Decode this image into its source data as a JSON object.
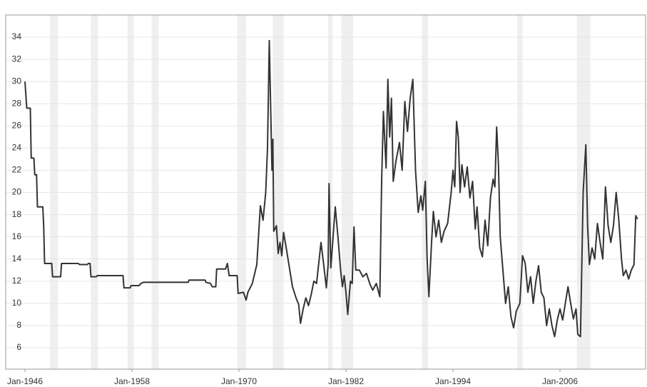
{
  "chart_data": {
    "type": "line",
    "x": [
      1946.0,
      1946.2,
      1946.6,
      1946.7,
      1947.0,
      1947.1,
      1947.3,
      1947.4,
      1948.0,
      1948.1,
      1948.2,
      1949.0,
      1949.1,
      1950.0,
      1950.1,
      1952.0,
      1952.1,
      1953.0,
      1953.1,
      1953.3,
      1953.4,
      1954.0,
      1954.1,
      1957.0,
      1957.1,
      1957.8,
      1957.9,
      1958.8,
      1959.0,
      1959.3,
      1964.3,
      1964.4,
      1966.2,
      1966.3,
      1966.8,
      1967.0,
      1967.4,
      1967.5,
      1968.5,
      1968.7,
      1968.9,
      1969.8,
      1969.9,
      1970.5,
      1970.8,
      1971.0,
      1971.5,
      1972.0,
      1972.4,
      1972.7,
      1973.0,
      1973.2,
      1973.4,
      1973.7,
      1973.8,
      1973.9,
      1974.2,
      1974.4,
      1974.6,
      1974.8,
      1975.0,
      1975.3,
      1975.6,
      1976.0,
      1976.4,
      1976.7,
      1976.9,
      1977.2,
      1977.5,
      1977.8,
      1978.1,
      1978.4,
      1978.7,
      1979.0,
      1979.2,
      1979.5,
      1979.8,
      1980.0,
      1980.1,
      1980.3,
      1980.6,
      1980.8,
      1981.1,
      1981.4,
      1981.6,
      1981.8,
      1982.0,
      1982.2,
      1982.5,
      1982.7,
      1982.9,
      1983.1,
      1983.5,
      1983.9,
      1984.3,
      1984.7,
      1985.0,
      1985.4,
      1985.8,
      1986.0,
      1986.2,
      1986.5,
      1986.7,
      1986.9,
      1987.1,
      1987.3,
      1987.6,
      1988.0,
      1988.3,
      1988.6,
      1988.9,
      1989.2,
      1989.5,
      1989.8,
      1990.1,
      1990.4,
      1990.6,
      1990.9,
      1991.1,
      1991.3,
      1991.6,
      1991.8,
      1992.1,
      1992.4,
      1992.7,
      1993.0,
      1993.4,
      1993.8,
      1994.0,
      1994.2,
      1994.4,
      1994.6,
      1994.8,
      1995.0,
      1995.3,
      1995.6,
      1995.9,
      1996.2,
      1996.5,
      1996.7,
      1997.0,
      1997.3,
      1997.6,
      1997.9,
      1998.2,
      1998.5,
      1998.7,
      1998.9,
      1999.1,
      1999.3,
      1999.6,
      1999.9,
      2000.2,
      2000.5,
      2000.8,
      2001.1,
      2001.5,
      2001.8,
      2002.1,
      2002.4,
      2002.7,
      2003.0,
      2003.3,
      2003.6,
      2003.9,
      2004.2,
      2004.5,
      2004.8,
      2005.1,
      2005.4,
      2005.7,
      2006.0,
      2006.3,
      2006.6,
      2006.9,
      2007.2,
      2007.5,
      2007.8,
      2008.0,
      2008.3,
      2008.6,
      2008.9,
      2009.1,
      2009.3,
      2009.6,
      2009.9,
      2010.2,
      2010.5,
      2010.8,
      2011.1,
      2011.4,
      2011.7,
      2012.0,
      2012.3,
      2012.6,
      2012.9,
      2013.1,
      2013.4,
      2013.7,
      2014.0,
      2014.3,
      2014.5,
      2014.7
    ],
    "values": [
      30,
      27.6,
      27.6,
      23.1,
      23.1,
      21.6,
      21.6,
      18.7,
      18.7,
      17,
      13.6,
      13.6,
      12.4,
      12.4,
      13.6,
      13.6,
      13.5,
      13.5,
      13.6,
      13.6,
      12.4,
      12.4,
      12.5,
      12.5,
      11.4,
      11.4,
      11.6,
      11.6,
      11.8,
      11.9,
      11.9,
      12.1,
      12.1,
      11.9,
      11.8,
      11.5,
      11.5,
      13.1,
      13.1,
      13.6,
      12.5,
      12.5,
      10.9,
      11,
      10.3,
      11,
      11.8,
      13.5,
      18.8,
      17.5,
      20,
      24,
      33.7,
      22,
      24.8,
      16.5,
      17,
      14.5,
      15.5,
      14.3,
      16.4,
      15,
      13.5,
      11.5,
      10.5,
      9.9,
      8.2,
      9.5,
      10.5,
      9.8,
      10.8,
      12,
      11.8,
      14,
      15.5,
      13.5,
      11.4,
      13.5,
      20.8,
      13.2,
      16.5,
      18.7,
      16,
      13,
      11.5,
      12.5,
      11,
      9,
      12,
      11.8,
      16.9,
      13,
      13,
      12.4,
      12.7,
      11.7,
      11.2,
      11.8,
      10.6,
      21,
      27.3,
      22.2,
      30.2,
      25,
      28.5,
      21,
      22.8,
      24.5,
      22,
      28.2,
      25.5,
      28.5,
      30.2,
      22,
      18.2,
      19.7,
      18.4,
      21,
      14,
      10.6,
      15.5,
      18.3,
      16,
      17.5,
      15.5,
      16.5,
      17.2,
      20,
      22,
      20.5,
      26.4,
      25,
      20,
      22.5,
      20.5,
      22.3,
      19.5,
      21,
      16.7,
      18.7,
      15,
      14.2,
      17.5,
      15.2,
      19.5,
      21.2,
      20.5,
      25.9,
      22.5,
      16,
      13,
      10,
      11.5,
      8.8,
      7.8,
      9.3,
      10,
      14.3,
      13.6,
      11,
      12.4,
      10,
      12,
      13.4,
      11,
      10.5,
      8,
      9.5,
      8,
      7,
      8.5,
      9.5,
      8.5,
      10,
      11.5,
      10,
      8.6,
      9.5,
      7.2,
      7,
      20,
      24.3,
      17,
      13.5,
      15,
      14,
      17.2,
      15.5,
      14,
      20.5,
      17,
      15.5,
      17,
      20,
      17.5,
      14,
      12.5,
      13,
      12.2,
      13,
      13.5,
      17.9,
      17.6
    ],
    "color": "#333333",
    "recessions": [
      [
        1948.8,
        1949.7
      ],
      [
        1953.4,
        1954.2
      ],
      [
        1957.5,
        1958.2
      ],
      [
        1960.2,
        1961.0
      ],
      [
        1969.8,
        1970.8
      ],
      [
        1973.8,
        1975.0
      ],
      [
        1980.0,
        1980.5
      ],
      [
        1981.5,
        1982.8
      ],
      [
        1990.5,
        1991.2
      ],
      [
        2001.2,
        2001.8
      ],
      [
        2007.9,
        2009.4
      ]
    ],
    "recession_color": "#efefef",
    "xlim": [
      1943.84,
      2015.6
    ],
    "xticks": [
      {
        "value": 1946,
        "label": "Jan-1946"
      },
      {
        "value": 1958,
        "label": "Jan-1958"
      },
      {
        "value": 1970,
        "label": "Jan-1970"
      },
      {
        "value": 1982,
        "label": "Jan-1982"
      },
      {
        "value": 1994,
        "label": "Jan-1994"
      },
      {
        "value": 2006,
        "label": "Jan-2006"
      }
    ],
    "ylim": [
      4.07,
      36
    ],
    "yticks": [
      6,
      8,
      10,
      12,
      14,
      16,
      18,
      20,
      22,
      24,
      26,
      28,
      30,
      32,
      34
    ],
    "grid": true
  }
}
